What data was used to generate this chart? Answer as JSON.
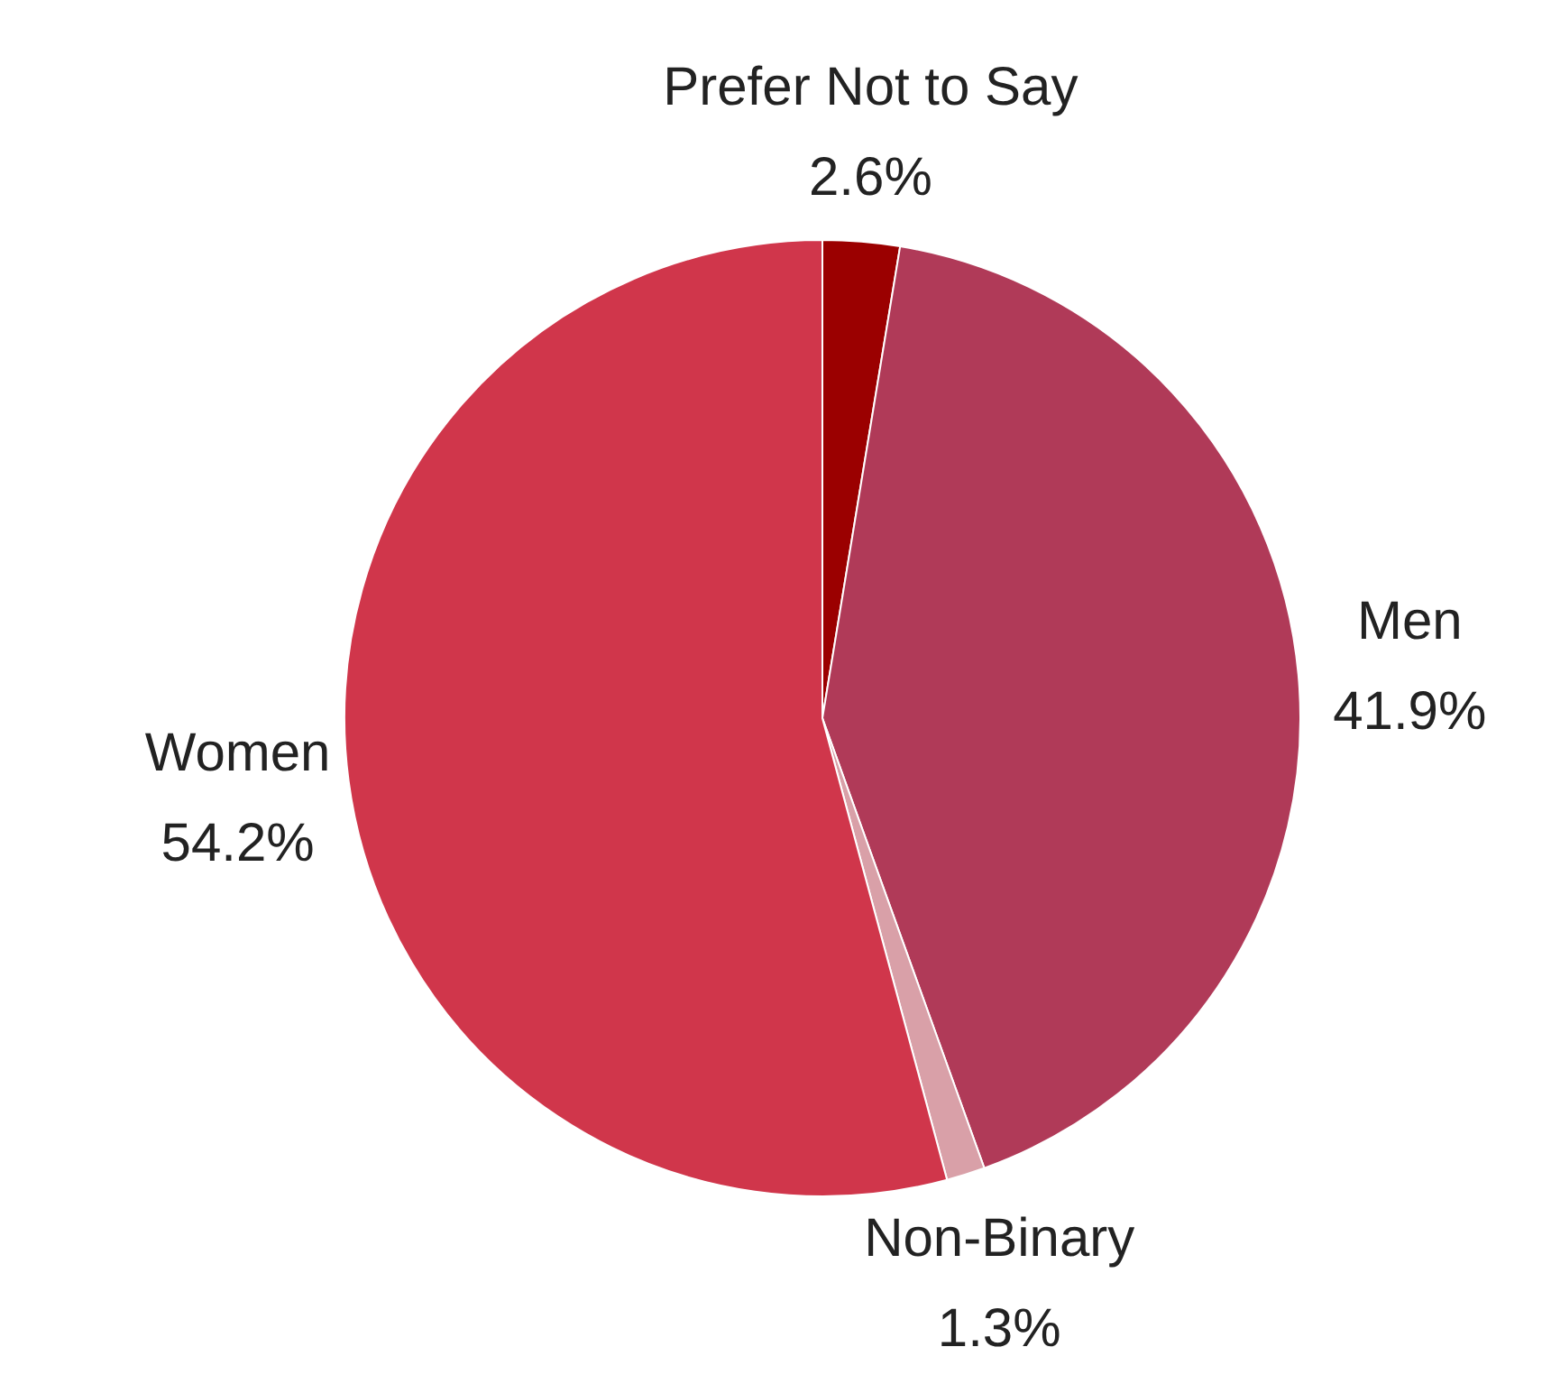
{
  "chart_data": {
    "type": "pie",
    "categories": [
      "Prefer Not to Say",
      "Men",
      "Non-Binary",
      "Women"
    ],
    "values": [
      2.6,
      41.9,
      1.3,
      54.2
    ],
    "colors": [
      "#9b0000",
      "#b03a58",
      "#d9a0a8",
      "#d0364b"
    ],
    "value_labels": [
      "2.6%",
      "41.9%",
      "1.3%",
      "54.2%"
    ],
    "legend": false
  }
}
